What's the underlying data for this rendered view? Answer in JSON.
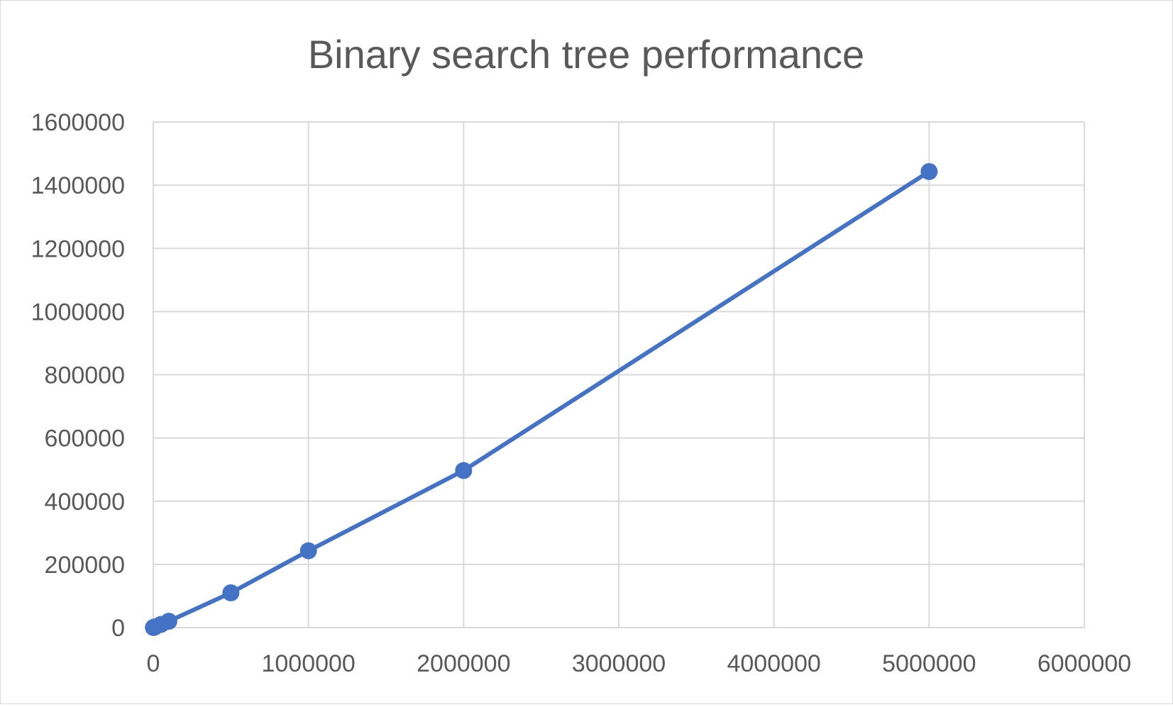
{
  "chart_data": {
    "type": "scatter",
    "title": "Binary search tree performance",
    "xlabel": "",
    "ylabel": "",
    "xlim": [
      0,
      6000000
    ],
    "ylim": [
      0,
      1600000
    ],
    "xticks": [
      0,
      1000000,
      2000000,
      3000000,
      4000000,
      5000000,
      6000000
    ],
    "yticks": [
      0,
      200000,
      400000,
      600000,
      800000,
      1000000,
      1200000,
      1400000,
      1600000
    ],
    "grid": true,
    "legend": "none",
    "series": [
      {
        "color": "#4472c4",
        "markers": true,
        "lines": true,
        "points": [
          {
            "x": 1000,
            "y": 200
          },
          {
            "x": 10000,
            "y": 2000
          },
          {
            "x": 50000,
            "y": 10000
          },
          {
            "x": 100000,
            "y": 20000
          },
          {
            "x": 500000,
            "y": 110000
          },
          {
            "x": 1000000,
            "y": 243000
          },
          {
            "x": 2000000,
            "y": 497000
          },
          {
            "x": 5000000,
            "y": 1443000
          }
        ]
      }
    ]
  }
}
